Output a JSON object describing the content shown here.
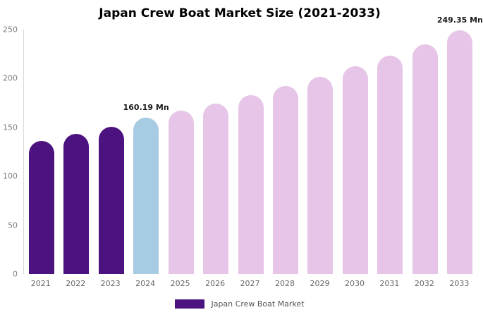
{
  "title": "Japan Crew Boat Market Size (2021-2033)",
  "legend": {
    "label": "Japan Crew Boat Market",
    "swatch_color": "#4b1280"
  },
  "colors": {
    "historical_bar": "#4b1280",
    "current_year_bar": "#a6cbe3",
    "forecast_bar": "#e6c5e8",
    "axis_line": "#d9d9d9",
    "tick_text": "#7f7f7f"
  },
  "chart_data": {
    "type": "bar",
    "title": "Japan Crew Boat Market Size (2021-2033)",
    "categories": [
      "2021",
      "2022",
      "2023",
      "2024",
      "2025",
      "2026",
      "2027",
      "2028",
      "2029",
      "2030",
      "2031",
      "2032",
      "2033"
    ],
    "values": [
      136.5,
      143.2,
      150.9,
      160.19,
      166.8,
      174.5,
      183.2,
      192.4,
      202.1,
      212.3,
      223.0,
      234.9,
      249.35
    ],
    "bar_colors": [
      "#4b1280",
      "#4b1280",
      "#4b1280",
      "#a6cbe3",
      "#e6c5e8",
      "#e6c5e8",
      "#e6c5e8",
      "#e6c5e8",
      "#e6c5e8",
      "#e6c5e8",
      "#e6c5e8",
      "#e6c5e8",
      "#e6c5e8"
    ],
    "annotations": [
      {
        "category": "2024",
        "text": "160.19 Mn"
      },
      {
        "category": "2033",
        "text": "249.35 Mn"
      }
    ],
    "xlabel": "",
    "ylabel": "",
    "ylim": [
      0,
      250
    ],
    "yticks": [
      0,
      50,
      100,
      150,
      200,
      250
    ],
    "grid": false,
    "legend_position": "bottom",
    "legend_entries": [
      "Japan Crew Boat Market"
    ]
  }
}
